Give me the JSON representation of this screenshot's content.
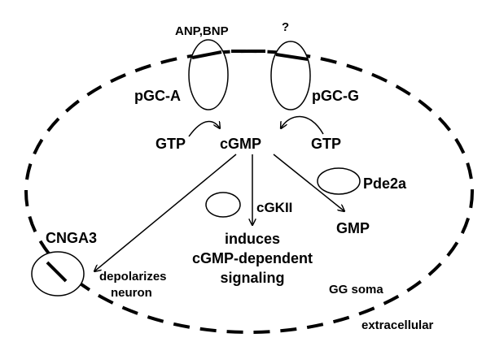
{
  "labels": {
    "ligand_left": "ANP,BNP",
    "ligand_right": "?",
    "receptor_left": "pGC-A",
    "receptor_right": "pGC-G",
    "gtp_left": "GTP",
    "gtp_right": "GTP",
    "cgmp": "cGMP",
    "pde": "Pde2a",
    "cgkii": "cGKII",
    "gmp": "GMP",
    "cnga3": "CNGA3",
    "effect_depol_line1": "depolarizes",
    "effect_depol_line2": "neuron",
    "effect_sig_line1": "induces",
    "effect_sig_line2": "cGMP-dependent",
    "effect_sig_line3": "signaling",
    "soma": "GG soma",
    "extracellular": "extracellular"
  },
  "colors": {
    "stroke": "#000000",
    "background": "#ffffff"
  }
}
